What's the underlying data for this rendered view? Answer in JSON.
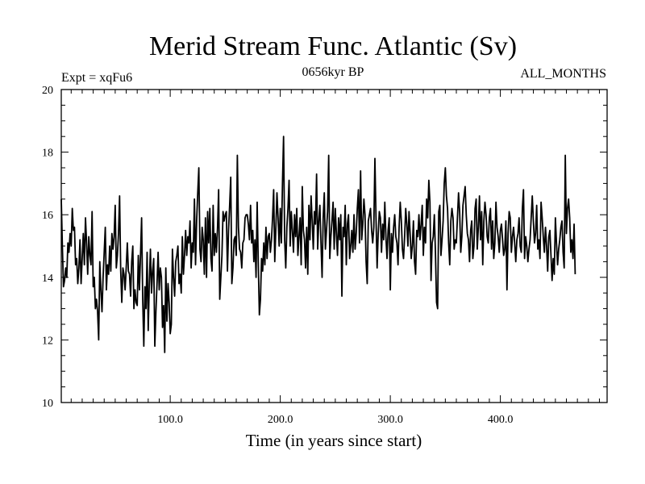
{
  "chart_data": {
    "type": "line",
    "title": "Merid Stream Func. Atlantic (Sv)",
    "subtitle_left": "Expt = xqFu6",
    "subtitle_center": "0656kyr BP",
    "subtitle_right": "ALL_MONTHS",
    "xlabel": "Time (in years since start)",
    "ylabel": "",
    "xlim": [
      1,
      497
    ],
    "ylim": [
      10,
      20
    ],
    "xticks_labeled": [
      100,
      200,
      300,
      400
    ],
    "xtick_labels": [
      "100.0",
      "200.0",
      "300.0",
      "400.0"
    ],
    "yticks_labeled": [
      10,
      12,
      14,
      16,
      18,
      20
    ],
    "ytick_labels": [
      "10",
      "12",
      "14",
      "16",
      "18",
      "20"
    ],
    "grid": false,
    "line_color": "#000000",
    "series": [
      {
        "name": "Merid Stream Func. Atlantic",
        "x_start": 1,
        "x_step": 1,
        "values": [
          16.5,
          15.0,
          13.7,
          13.9,
          14.3,
          14.0,
          15.1,
          14.8,
          15.4,
          15.0,
          16.2,
          15.5,
          15.6,
          14.4,
          14.6,
          13.8,
          14.3,
          15.2,
          13.8,
          14.6,
          15.4,
          14.4,
          15.9,
          15.1,
          14.1,
          15.3,
          14.7,
          14.4,
          16.1,
          13.7,
          14.0,
          13.0,
          13.3,
          12.9,
          12.0,
          14.5,
          13.6,
          12.9,
          14.0,
          14.8,
          15.6,
          13.6,
          14.4,
          14.1,
          15.0,
          14.2,
          15.4,
          14.9,
          15.3,
          16.3,
          14.3,
          14.7,
          15.4,
          16.6,
          14.2,
          13.2,
          14.3,
          14.1,
          13.6,
          14.3,
          15.1,
          14.2,
          14.1,
          13.4,
          14.5,
          15.0,
          13.0,
          13.6,
          13.2,
          13.1,
          14.7,
          13.6,
          14.7,
          15.9,
          13.3,
          11.8,
          13.7,
          13.0,
          14.8,
          12.3,
          13.8,
          14.9,
          13.5,
          14.2,
          14.6,
          11.8,
          12.9,
          13.8,
          14.8,
          13.6,
          14.3,
          14.0,
          12.4,
          13.1,
          11.6,
          14.3,
          12.6,
          13.8,
          13.2,
          12.2,
          12.5,
          14.9,
          14.0,
          13.4,
          14.5,
          14.7,
          15.0,
          13.8,
          14.1,
          13.5,
          15.3,
          14.1,
          14.7,
          15.5,
          14.7,
          15.3,
          15.1,
          15.8,
          14.3,
          15.1,
          14.8,
          16.5,
          14.4,
          15.8,
          16.7,
          17.5,
          14.9,
          14.5,
          15.6,
          15.2,
          14.1,
          15.9,
          14.0,
          16.1,
          15.1,
          16.2,
          14.6,
          14.2,
          16.3,
          14.7,
          15.4,
          14.8,
          15.6,
          16.8,
          13.3,
          14.0,
          14.7,
          16.1,
          15.8,
          16.0,
          16.1,
          14.2,
          15.5,
          16.3,
          17.2,
          13.8,
          14.3,
          15.2,
          15.3,
          14.7,
          17.9,
          15.6,
          14.9,
          14.8,
          14.3,
          15.1,
          15.2,
          15.9,
          16.0,
          16.0,
          15.7,
          15.2,
          16.3,
          15.1,
          15.5,
          14.5,
          15.2,
          14.0,
          16.4,
          14.5,
          12.8,
          13.3,
          14.6,
          14.2,
          15.1,
          14.4,
          15.6,
          14.6,
          15.3,
          15.4,
          14.8,
          15.2,
          15.9,
          16.8,
          14.5,
          15.6,
          16.7,
          15.9,
          15.0,
          16.2,
          15.1,
          17.0,
          18.5,
          15.2,
          14.3,
          15.6,
          16.2,
          17.1,
          15.0,
          16.1,
          15.5,
          14.8,
          16.0,
          15.3,
          16.2,
          14.7,
          15.3,
          15.9,
          14.4,
          16.9,
          15.5,
          15.2,
          14.3,
          15.6,
          14.1,
          16.3,
          15.2,
          16.6,
          15.8,
          14.9,
          16.1,
          15.7,
          17.3,
          14.9,
          15.8,
          16.3,
          15.1,
          14.0,
          15.9,
          16.7,
          14.9,
          15.5,
          16.1,
          17.9,
          14.6,
          15.3,
          15.8,
          16.4,
          14.9,
          16.2,
          15.4,
          14.7,
          15.9,
          15.2,
          16.0,
          13.4,
          15.6,
          15.3,
          16.3,
          14.4,
          15.7,
          16.0,
          14.6,
          15.0,
          15.5,
          14.8,
          16.0,
          14.9,
          15.4,
          16.2,
          16.8,
          15.1,
          17.4,
          15.2,
          15.7,
          16.5,
          16.0,
          14.5,
          13.8,
          15.8,
          16.0,
          16.2,
          15.5,
          15.1,
          15.6,
          17.8,
          15.9,
          14.3,
          15.4,
          16.1,
          15.9,
          14.8,
          15.7,
          15.2,
          16.4,
          15.3,
          14.6,
          15.5,
          15.9,
          13.6,
          15.4,
          14.8,
          15.6,
          16.0,
          15.3,
          15.1,
          14.4,
          15.6,
          16.4,
          15.8,
          14.9,
          14.6,
          15.3,
          16.2,
          15.7,
          15.0,
          16.1,
          15.4,
          14.6,
          15.0,
          15.8,
          14.5,
          14.1,
          15.5,
          15.3,
          16.0,
          15.2,
          15.7,
          16.3,
          14.7,
          15.6,
          15.1,
          16.5,
          15.9,
          17.1,
          16.4,
          13.9,
          15.1,
          15.3,
          16.0,
          14.8,
          13.2,
          13.0,
          16.1,
          16.3,
          14.7,
          15.2,
          15.8,
          17.0,
          17.5,
          16.6,
          16.2,
          15.1,
          14.4,
          15.8,
          16.2,
          15.9,
          14.9,
          15.2,
          15.1,
          15.9,
          16.7,
          16.1,
          14.8,
          15.3,
          16.3,
          16.6,
          16.9,
          16.0,
          15.4,
          15.2,
          14.5,
          15.5,
          15.8,
          14.6,
          15.0,
          16.2,
          16.5,
          14.9,
          15.6,
          16.6,
          15.2,
          16.1,
          14.4,
          15.8,
          16.4,
          16.0,
          15.3,
          15.1,
          15.9,
          16.2,
          14.9,
          15.8,
          14.6,
          15.1,
          16.4,
          15.6,
          15.3,
          14.8,
          15.5,
          15.7,
          15.2,
          14.7,
          14.9,
          15.8,
          13.6,
          15.4,
          16.1,
          15.9,
          14.8,
          15.3,
          15.6,
          15.1,
          14.5,
          15.2,
          15.4,
          15.9,
          15.0,
          14.8,
          16.2,
          16.8,
          14.6,
          15.3,
          15.0,
          14.5,
          14.9,
          15.2,
          15.9,
          16.6,
          15.8,
          15.1,
          15.4,
          16.3,
          14.9,
          15.2,
          14.6,
          16.4,
          15.9,
          15.3,
          14.8,
          15.6,
          15.0,
          14.2,
          15.3,
          15.5,
          14.7,
          13.9,
          14.6,
          14.1,
          15.9,
          15.1,
          14.4,
          14.9,
          15.2,
          15.6,
          15.8,
          14.8,
          14.3,
          17.9,
          15.4,
          16.2,
          16.5,
          15.9,
          14.8,
          15.2,
          14.6,
          15.7,
          14.1
        ]
      }
    ]
  }
}
